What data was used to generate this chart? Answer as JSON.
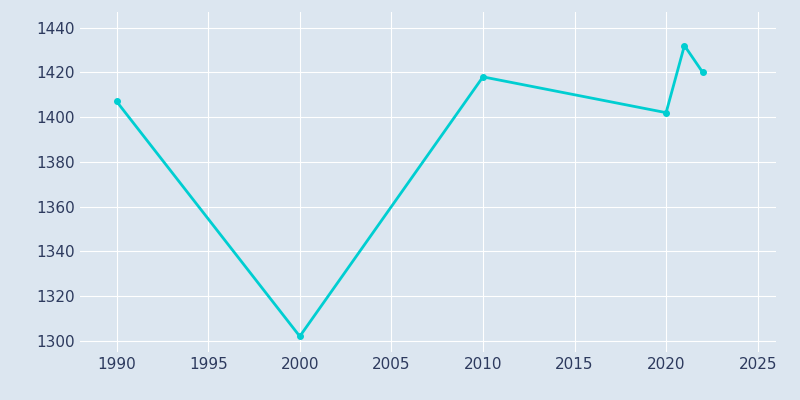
{
  "years": [
    1990,
    2000,
    2010,
    2020,
    2021,
    2022
  ],
  "population": [
    1407,
    1302,
    1418,
    1402,
    1432,
    1420
  ],
  "line_color": "#00CED1",
  "marker_color": "#00CED1",
  "background_color": "#dce6f0",
  "plot_bg_color": "#dce6f0",
  "xlim": [
    1988,
    2026
  ],
  "ylim": [
    1295,
    1447
  ],
  "xticks": [
    1990,
    1995,
    2000,
    2005,
    2010,
    2015,
    2020,
    2025
  ],
  "yticks": [
    1300,
    1320,
    1340,
    1360,
    1380,
    1400,
    1420,
    1440
  ],
  "line_width": 2.0,
  "marker_size": 4
}
